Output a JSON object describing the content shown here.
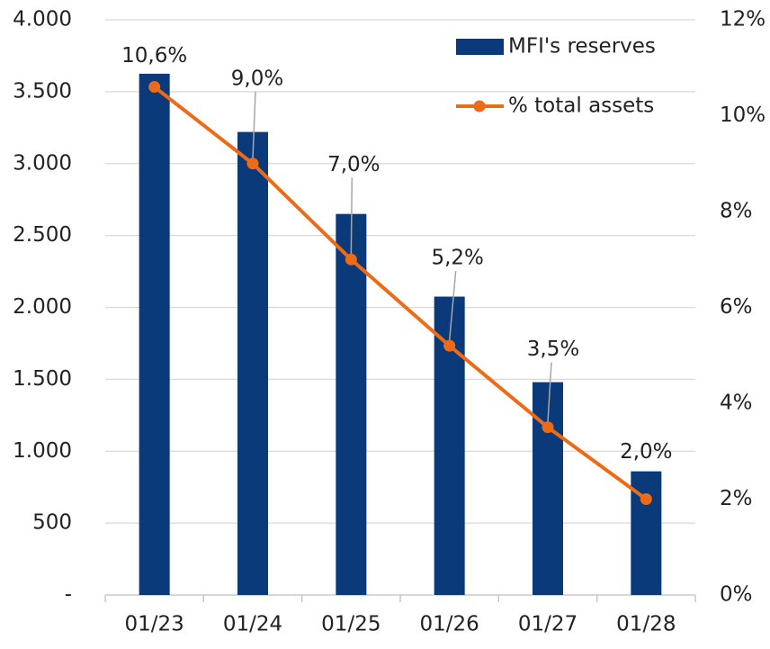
{
  "chart_data": {
    "type": "bar-line",
    "categories": [
      "01/23",
      "01/24",
      "01/25",
      "01/26",
      "01/27",
      "01/28"
    ],
    "series": [
      {
        "name": "MFI's reserves",
        "type": "bar",
        "color": "#0b3a7a",
        "axis": "y",
        "values": [
          3625,
          3220,
          2650,
          2075,
          1480,
          860
        ]
      },
      {
        "name": "% total assets",
        "type": "line",
        "color": "#ed6b16",
        "axis": "y2",
        "values": [
          10.6,
          9.0,
          7.0,
          5.2,
          3.5,
          2.0
        ],
        "value_labels": [
          "10,6%",
          "9,0%",
          "7,0%",
          "5,2%",
          "3,5%",
          "2,0%"
        ]
      }
    ],
    "ylim": [
      0,
      4000
    ],
    "yticks": [
      {
        "value": 0,
        "label": "-"
      },
      500,
      {
        "value": 1000,
        "label": "1.000"
      },
      {
        "value": 1500,
        "label": "1.500"
      },
      {
        "value": 2000,
        "label": "2.000"
      },
      {
        "value": 2500,
        "label": "2.500"
      },
      {
        "value": 3000,
        "label": "3.000"
      },
      {
        "value": 3500,
        "label": "3.500"
      },
      {
        "value": 4000,
        "label": "4.000"
      }
    ],
    "y2lim": [
      0,
      12
    ],
    "y2ticks": [
      {
        "value": 0,
        "label": "0%"
      },
      {
        "value": 2,
        "label": "2%"
      },
      {
        "value": 4,
        "label": "4%"
      },
      {
        "value": 6,
        "label": "6%"
      },
      {
        "value": 8,
        "label": "8%"
      },
      {
        "value": 10,
        "label": "10%"
      },
      {
        "value": 12,
        "label": "12%"
      }
    ],
    "grid": true,
    "legend": "top-right"
  }
}
